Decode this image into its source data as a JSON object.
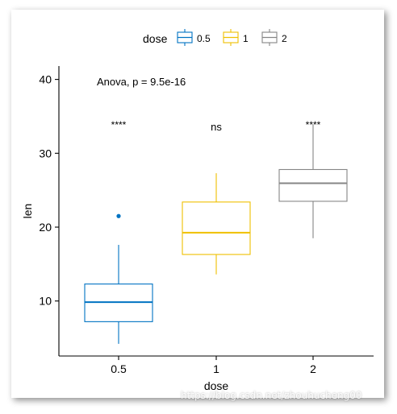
{
  "chart_data": {
    "type": "box",
    "xlabel": "dose",
    "ylabel": "len",
    "categories": [
      "0.5",
      "1",
      "2"
    ],
    "yticks": [
      10,
      20,
      30,
      40
    ],
    "ylim": [
      2.5,
      42
    ],
    "legend": {
      "title": "dose",
      "position": "top",
      "entries": [
        "0.5",
        "1",
        "2"
      ]
    },
    "series": [
      {
        "name": "0.5",
        "color": "#0073C2",
        "min": 4.2,
        "q1": 7.2,
        "median": 9.85,
        "q3": 12.3,
        "max": 17.6,
        "outliers": [
          21.5
        ]
      },
      {
        "name": "1",
        "color": "#EFC000",
        "min": 13.6,
        "q1": 16.3,
        "median": 19.25,
        "q3": 23.4,
        "max": 27.3,
        "outliers": []
      },
      {
        "name": "2",
        "color": "#868686",
        "min": 18.5,
        "q1": 23.5,
        "median": 25.95,
        "q3": 27.8,
        "max": 33.9,
        "outliers": []
      }
    ],
    "annotations": {
      "anova": "Anova, p = 9.5e-16",
      "significance": [
        "****",
        "ns",
        "****"
      ]
    }
  },
  "watermark": "https://blog.csdn.net/zhouhucheng00"
}
